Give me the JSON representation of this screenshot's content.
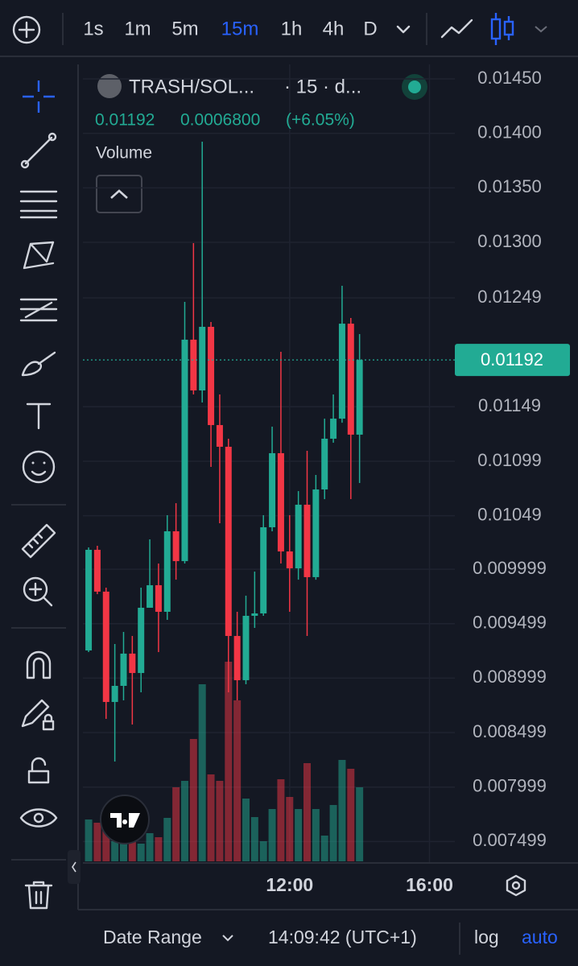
{
  "toolbar": {
    "intervals": [
      "1s",
      "1m",
      "5m",
      "15m",
      "1h",
      "4h",
      "D"
    ],
    "active_interval": 3
  },
  "chart_data": {
    "type": "candlestick",
    "symbol": "TRASH/SOL...",
    "interval_info": "· 15 · d...",
    "change": "0.0006800",
    "change_percent": "(+6.05%)",
    "volume_label": "Volume",
    "last_price": 0.01192,
    "up_color": "#22ab94",
    "down_color": "#f23645",
    "categories": [
      null,
      null,
      null,
      null,
      null,
      null,
      null,
      null,
      null,
      null,
      null,
      null,
      null,
      null,
      null,
      null,
      null,
      null,
      null,
      null,
      null,
      null,
      null,
      null,
      null,
      null,
      null,
      null,
      null,
      null,
      null,
      null
    ],
    "open": [
      0.009253,
      0.010177,
      0.009793,
      0.00878,
      0.008928,
      0.009224,
      0.009046,
      0.009645,
      0.009852,
      0.009608,
      0.010347,
      0.010073,
      0.012106,
      0.01164,
      0.012224,
      0.011322,
      0.011123,
      0.009386,
      0.00898,
      0.009571,
      0.009593,
      0.010384,
      0.011064,
      0.010162,
      0.010007,
      0.010591,
      0.009926,
      0.010731,
      0.011197,
      0.011381,
      0.012253,
      0.011234
    ],
    "high": [
      0.010199,
      0.010214,
      0.00983,
      0.009312,
      0.009423,
      0.009386,
      0.00983,
      0.010273,
      0.010051,
      0.010495,
      0.010605,
      0.012453,
      0.012992,
      0.013924,
      0.012268,
      0.011603,
      0.011197,
      0.009608,
      0.009756,
      0.009977,
      0.010495,
      0.011308,
      0.011995,
      0.010495,
      0.010716,
      0.011086,
      0.010864,
      0.011381,
      0.011603,
      0.012601,
      0.012305,
      0.012157
    ],
    "low": [
      0.009238,
      0.00977,
      0.008625,
      0.008233,
      0.008795,
      0.008573,
      0.008869,
      0.009645,
      0.009238,
      0.009534,
      0.009903,
      0.010051,
      0.011603,
      0.011529,
      0.010938,
      0.010421,
      0.008869,
      0.008795,
      0.008943,
      0.00946,
      0.009571,
      0.010347,
      0.010051,
      0.009608,
      0.009903,
      0.009386,
      0.009903,
      0.010642,
      0.01116,
      0.011344,
      0.010642,
      0.01079
    ],
    "close": [
      0.010177,
      0.009793,
      0.00878,
      0.008928,
      0.009224,
      0.009046,
      0.009645,
      0.009852,
      0.009608,
      0.010347,
      0.010073,
      0.012106,
      0.01164,
      0.012224,
      0.011322,
      0.011123,
      0.009386,
      0.00898,
      0.009571,
      0.009593,
      0.010384,
      0.011064,
      0.010162,
      0.010007,
      0.010591,
      0.009926,
      0.010731,
      0.011197,
      0.011381,
      0.012253,
      0.011234,
      0.01192
    ],
    "volume": [
      52,
      48,
      50,
      25,
      30,
      35,
      22,
      35,
      30,
      54,
      92,
      100,
      152,
      220,
      108,
      100,
      248,
      200,
      78,
      55,
      25,
      65,
      102,
      80,
      65,
      122,
      65,
      32,
      70,
      126,
      115,
      92
    ],
    "xlim": [
      -0.65,
      41.9
    ],
    "xticks": [
      {
        "value": 23,
        "label": "12:00"
      },
      {
        "value": 39,
        "label": "16:00"
      }
    ],
    "ylim": [
      0.007317,
      0.014633
    ],
    "yticks": [
      {
        "value": 0.0145,
        "label": "0.01450"
      },
      {
        "value": 0.014,
        "label": "0.01400"
      },
      {
        "value": 0.0135,
        "label": "0.01350"
      },
      {
        "value": 0.013,
        "label": "0.01300"
      },
      0.01249,
      0.01149,
      0.01099,
      0.01049,
      0.009999,
      0.009499,
      0.008999,
      0.008499,
      0.007999,
      0.007499
    ],
    "grid": true
  },
  "footer": {
    "date_range": "Date Range",
    "time": "14:09:42 (UTC+1)",
    "log": "log",
    "auto": "auto"
  }
}
